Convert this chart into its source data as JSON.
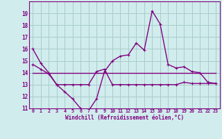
{
  "hours": [
    0,
    1,
    2,
    3,
    4,
    5,
    6,
    7,
    8,
    9,
    10,
    11,
    12,
    13,
    14,
    15,
    16,
    17,
    18,
    19,
    20,
    21,
    22,
    23
  ],
  "line1": [
    16.0,
    14.8,
    14.0,
    13.0,
    12.4,
    11.8,
    11.0,
    10.8,
    11.8,
    14.1,
    15.0,
    15.4,
    15.5,
    16.5,
    15.9,
    19.2,
    18.1,
    14.7,
    14.4,
    14.5,
    14.1,
    14.0,
    13.2,
    13.1
  ],
  "line2": [
    14.7,
    14.3,
    13.9,
    13.0,
    13.0,
    13.0,
    13.0,
    13.0,
    14.1,
    14.3,
    13.0,
    13.0,
    13.0,
    13.0,
    13.0,
    13.0,
    13.0,
    13.0,
    13.0,
    13.2,
    13.1,
    13.1,
    13.1,
    13.1
  ],
  "line3": [
    14.0,
    14.0,
    14.0,
    14.0,
    14.0,
    14.0,
    14.0,
    14.0,
    14.0,
    14.0,
    14.0,
    14.0,
    14.0,
    14.0,
    14.0,
    14.0,
    14.0,
    14.0,
    14.0,
    14.0,
    14.0,
    14.0,
    14.0,
    14.0
  ],
  "color": "#800080",
  "bg_color": "#d0ecec",
  "grid_color": "#aacccc",
  "xlabel": "Windchill (Refroidissement éolien,°C)",
  "ylim": [
    11,
    20
  ],
  "xlim": [
    -0.5,
    23.5
  ],
  "yticks": [
    11,
    12,
    13,
    14,
    15,
    16,
    17,
    18,
    19
  ],
  "xticks": [
    0,
    1,
    2,
    3,
    4,
    5,
    6,
    7,
    8,
    9,
    10,
    11,
    12,
    13,
    14,
    15,
    16,
    17,
    18,
    19,
    20,
    21,
    22,
    23
  ]
}
